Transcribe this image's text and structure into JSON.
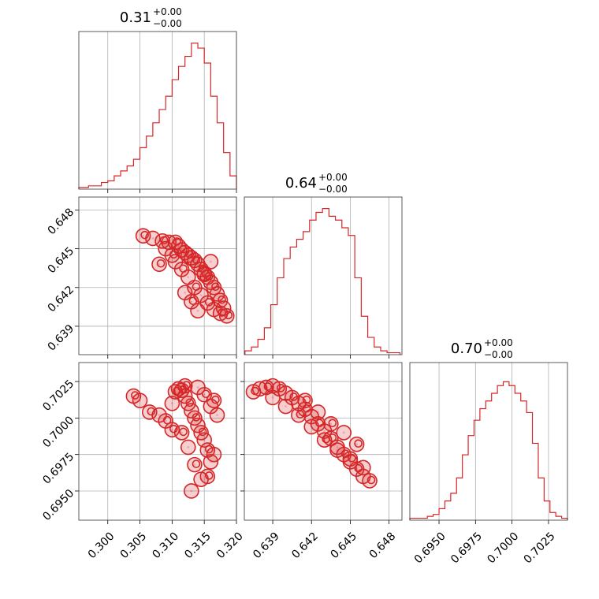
{
  "chart_data": [
    {
      "type": "histogram",
      "panel": "diag-0",
      "title": "0.31",
      "title_sup": "+0.00",
      "title_sub": "−0.00",
      "xlim": [
        0.2955,
        0.32
      ],
      "x": [
        0.2955,
        0.2965,
        0.2975,
        0.2985,
        0.2995,
        0.3005,
        0.3015,
        0.3025,
        0.3035,
        0.3045,
        0.3055,
        0.3065,
        0.3075,
        0.3085,
        0.3095,
        0.3105,
        0.3115,
        0.3125,
        0.3135,
        0.3145,
        0.3155,
        0.3165,
        0.3175,
        0.3185,
        0.3195
      ],
      "values": [
        1,
        1,
        2,
        2,
        4,
        5,
        8,
        11,
        14,
        18,
        25,
        32,
        40,
        48,
        56,
        66,
        74,
        80,
        88,
        85,
        76,
        56,
        40,
        22,
        8
      ],
      "ymax": 95,
      "color": "#d62728"
    },
    {
      "type": "histogram",
      "panel": "diag-1",
      "title": "0.64",
      "title_sup": "+0.00",
      "title_sub": "−0.00",
      "xlim": [
        0.6368,
        0.649
      ],
      "x": [
        0.6371,
        0.6376,
        0.6381,
        0.6386,
        0.6391,
        0.6396,
        0.6401,
        0.6406,
        0.6411,
        0.6416,
        0.6421,
        0.6426,
        0.6431,
        0.6436,
        0.6441,
        0.6446,
        0.6451,
        0.6456,
        0.6461,
        0.6466,
        0.6471,
        0.6476,
        0.6481,
        0.6486
      ],
      "values": [
        2,
        4,
        8,
        14,
        26,
        40,
        50,
        56,
        60,
        64,
        70,
        74,
        76,
        72,
        70,
        66,
        62,
        40,
        20,
        9,
        4,
        2,
        1,
        1
      ],
      "ymax": 82,
      "color": "#d62728"
    },
    {
      "type": "histogram",
      "panel": "diag-2",
      "title": "0.70",
      "title_sup": "+0.00",
      "title_sub": "−0.00",
      "xlim": [
        0.693,
        0.7038
      ],
      "x": [
        0.6932,
        0.6936,
        0.694,
        0.6944,
        0.6948,
        0.6952,
        0.6956,
        0.696,
        0.6964,
        0.6968,
        0.6972,
        0.6976,
        0.698,
        0.6984,
        0.6988,
        0.6992,
        0.6996,
        0.7,
        0.7004,
        0.7008,
        0.7012,
        0.7016,
        0.702,
        0.7024,
        0.7028,
        0.7032,
        0.7036
      ],
      "values": [
        1,
        1,
        1,
        2,
        3,
        6,
        10,
        14,
        22,
        34,
        44,
        52,
        58,
        62,
        66,
        70,
        72,
        70,
        66,
        62,
        56,
        40,
        22,
        10,
        4,
        2,
        1
      ],
      "ymax": 82,
      "color": "#d62728"
    },
    {
      "type": "scatter",
      "panel": "2d-1-0",
      "xlim": [
        0.2955,
        0.32
      ],
      "ylim": [
        0.6368,
        0.649
      ],
      "color": "#d62728",
      "x": [
        0.3055,
        0.307,
        0.3085,
        0.3095,
        0.3105,
        0.311,
        0.3115,
        0.312,
        0.3125,
        0.313,
        0.3135,
        0.314,
        0.3145,
        0.315,
        0.3155,
        0.316,
        0.3165,
        0.317,
        0.3175,
        0.318,
        0.3185,
        0.3105,
        0.3115,
        0.3125,
        0.3135,
        0.3145,
        0.3155,
        0.3165,
        0.3175,
        0.312,
        0.313,
        0.314,
        0.315,
        0.316,
        0.31,
        0.309,
        0.308
      ],
      "y": [
        0.646,
        0.6458,
        0.6456,
        0.6455,
        0.6455,
        0.6452,
        0.6449,
        0.6447,
        0.6445,
        0.6443,
        0.6441,
        0.6438,
        0.6434,
        0.6431,
        0.6428,
        0.6424,
        0.642,
        0.6415,
        0.641,
        0.6404,
        0.6398,
        0.644,
        0.6434,
        0.6428,
        0.642,
        0.6414,
        0.6408,
        0.6403,
        0.64,
        0.6416,
        0.6409,
        0.6402,
        0.643,
        0.644,
        0.6445,
        0.645,
        0.6438
      ]
    },
    {
      "type": "scatter",
      "panel": "2d-2-0",
      "xlim": [
        0.2955,
        0.32
      ],
      "ylim": [
        0.693,
        0.7038
      ],
      "color": "#d62728",
      "x": [
        0.304,
        0.305,
        0.3065,
        0.308,
        0.309,
        0.31,
        0.3105,
        0.311,
        0.3115,
        0.312,
        0.3125,
        0.313,
        0.3135,
        0.314,
        0.3145,
        0.315,
        0.3155,
        0.316,
        0.3165,
        0.317,
        0.3115,
        0.3125,
        0.3135,
        0.3145,
        0.3155,
        0.3165,
        0.312,
        0.314,
        0.315,
        0.316,
        0.31,
        0.313
      ],
      "y": [
        0.7015,
        0.7012,
        0.7004,
        0.7002,
        0.6998,
        0.701,
        0.7018,
        0.702,
        0.7019,
        0.7015,
        0.701,
        0.7005,
        0.7,
        0.6995,
        0.699,
        0.6985,
        0.6978,
        0.697,
        0.7012,
        0.7002,
        0.699,
        0.698,
        0.6968,
        0.6958,
        0.696,
        0.6975,
        0.7022,
        0.7021,
        0.7016,
        0.7008,
        0.6992,
        0.695
      ]
    },
    {
      "type": "scatter",
      "panel": "2d-2-1",
      "xlim": [
        0.6368,
        0.649
      ],
      "ylim": [
        0.693,
        0.7038
      ],
      "color": "#d62728",
      "x": [
        0.6375,
        0.638,
        0.6385,
        0.639,
        0.6395,
        0.64,
        0.6405,
        0.641,
        0.6415,
        0.642,
        0.6425,
        0.643,
        0.6435,
        0.644,
        0.6445,
        0.645,
        0.6455,
        0.646,
        0.6465,
        0.64,
        0.641,
        0.642,
        0.643,
        0.644,
        0.645,
        0.639,
        0.6415,
        0.6425,
        0.6435,
        0.6445,
        0.6455,
        0.646
      ],
      "y": [
        0.7018,
        0.702,
        0.7021,
        0.7022,
        0.702,
        0.7017,
        0.7014,
        0.701,
        0.7006,
        0.7001,
        0.6996,
        0.6991,
        0.6986,
        0.698,
        0.6975,
        0.697,
        0.6965,
        0.696,
        0.6957,
        0.7008,
        0.7002,
        0.6994,
        0.6985,
        0.6978,
        0.6972,
        0.7014,
        0.7012,
        0.7004,
        0.6996,
        0.699,
        0.6982,
        0.6966
      ]
    }
  ],
  "axes": {
    "x0_ticks": [
      "0.300",
      "0.305",
      "0.310",
      "0.315",
      "0.320"
    ],
    "x0_tick_values": [
      0.3,
      0.305,
      0.31,
      0.315,
      0.32
    ],
    "x1_ticks": [
      "0.639",
      "0.642",
      "0.645",
      "0.648"
    ],
    "x1_tick_values": [
      0.639,
      0.642,
      0.645,
      0.648
    ],
    "x2_ticks": [
      "0.6950",
      "0.6975",
      "0.7000",
      "0.7025"
    ],
    "x2_tick_values": [
      0.695,
      0.6975,
      0.7,
      0.7025
    ],
    "y1_ticks": [
      "0.648",
      "0.645",
      "0.642",
      "0.639"
    ],
    "y1_tick_values": [
      0.648,
      0.645,
      0.642,
      0.639
    ],
    "y2_ticks": [
      "0.7025",
      "0.7000",
      "0.6975",
      "0.6950"
    ],
    "y2_tick_values": [
      0.7025,
      0.7,
      0.6975,
      0.695
    ]
  }
}
